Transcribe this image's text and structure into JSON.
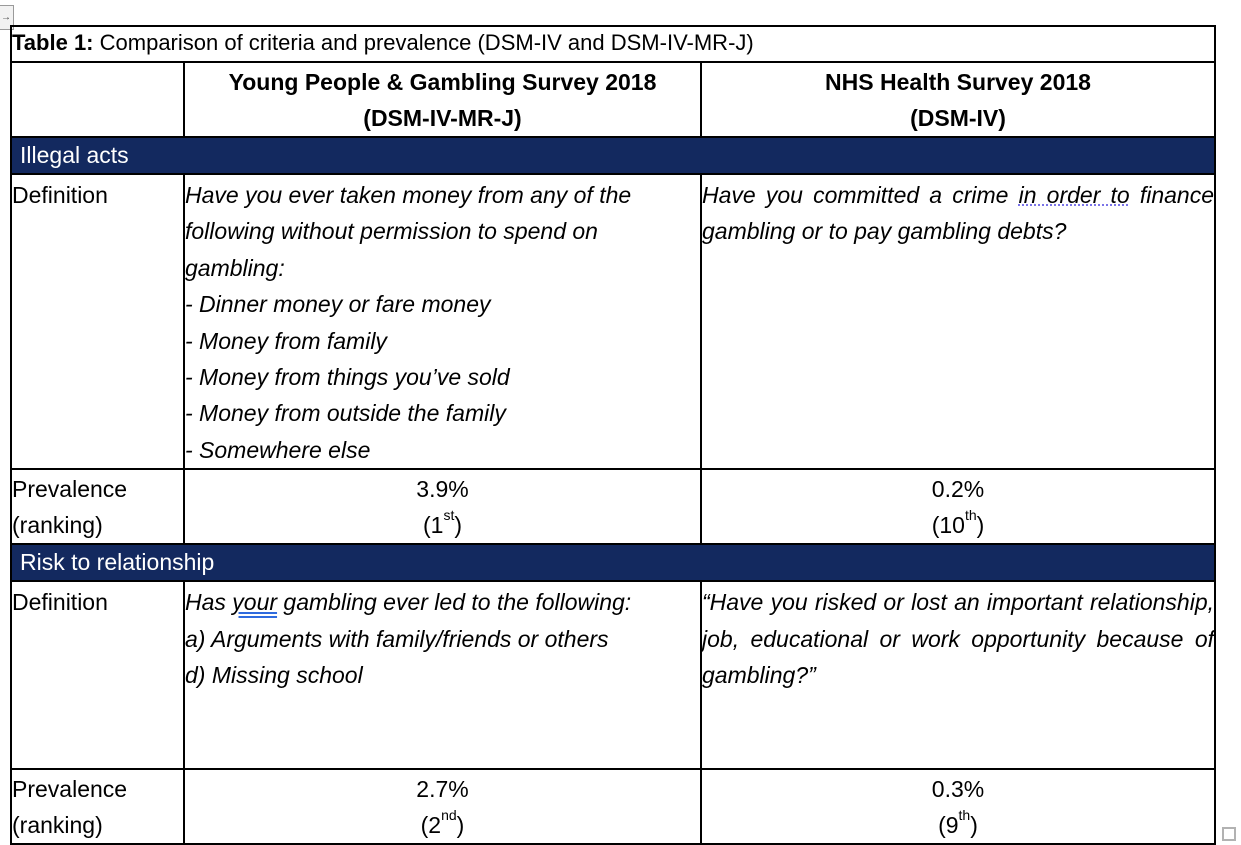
{
  "chrome": {
    "move_handle_icon": "→"
  },
  "caption": {
    "label_bold": "Table 1:",
    "label_rest": " Comparison of criteria and prevalence (DSM-IV and DSM-IV-MR-J)"
  },
  "columns": {
    "survey1_line1": "Young People & Gambling Survey 2018",
    "survey1_line2": "(DSM-IV-MR-J)",
    "survey2_line1": "NHS Health Survey 2018",
    "survey2_line2": "(DSM-IV)"
  },
  "labels": {
    "definition": "Definition",
    "prevalence_line1": "Prevalence",
    "prevalence_line2": "(ranking)"
  },
  "sections": [
    {
      "header": "Illegal acts",
      "def_col2_intro": "Have you ever taken money from any of the following without permission to spend on gambling:",
      "def_col2_items": [
        "- Dinner money or fare money",
        "- Money from family",
        "- Money from things you’ve sold",
        "- Money from outside the family",
        "- Somewhere else"
      ],
      "def_col3_pre": "Have you committed a crime ",
      "def_col3_marked": "in order to",
      "def_col3_post": " finance gambling or to pay gambling debts?",
      "prev_col2_value": "3.9%",
      "prev_col2_rank_base": "(1",
      "prev_col2_rank_sup": "st",
      "prev_col2_rank_close": ")",
      "prev_col3_value": "0.2%",
      "prev_col3_rank_base": "(10",
      "prev_col3_rank_sup": "th",
      "prev_col3_rank_close": ")"
    },
    {
      "header": "Risk to relationship",
      "def_col2_pre": "Has ",
      "def_col2_marked": "your",
      "def_col2_post": " gambling ever led to the following:",
      "def_col2_items": [
        "a) Arguments with family/friends or others",
        "d) Missing school"
      ],
      "def_col3_text": "“Have you risked or lost an important relationship, job, educational or work opportunity because of gambling?”",
      "prev_col2_value": "2.7%",
      "prev_col2_rank_base": "(2",
      "prev_col2_rank_sup": "nd",
      "prev_col2_rank_close": ")",
      "prev_col3_value": "0.3%",
      "prev_col3_rank_base": "(9",
      "prev_col3_rank_sup": "th",
      "prev_col3_rank_close": ")"
    }
  ],
  "colors": {
    "section_header_bg": "#13295f",
    "section_header_text": "#ffffff",
    "grammar_double_underline": "#2f6bde",
    "style_dotted_underline": "#7b74e8",
    "border": "#000000"
  }
}
